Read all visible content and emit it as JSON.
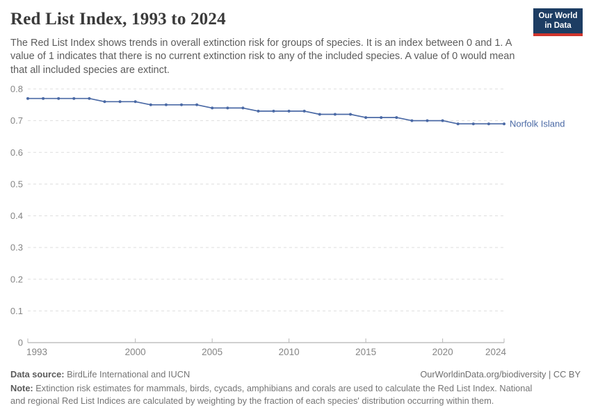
{
  "header": {
    "title": "Red List Index, 1993 to 2024",
    "subtitle": "The Red List Index shows trends in overall extinction risk for groups of species. It is an index between 0 and 1. A value of 1 indicates that there is no current extinction risk to any of the included species. A value of 0 would mean that all included species are extinct.",
    "logo": {
      "line1": "Our World",
      "line2": "in Data"
    }
  },
  "chart_data": {
    "type": "line",
    "title": "Red List Index, 1993 to 2024",
    "xlabel": "",
    "ylabel": "",
    "xlim": [
      1993,
      2024
    ],
    "ylim": [
      0,
      0.8
    ],
    "x_ticks": [
      1993,
      2000,
      2005,
      2010,
      2015,
      2020,
      2024
    ],
    "y_ticks": [
      0,
      0.1,
      0.2,
      0.3,
      0.4,
      0.5,
      0.6,
      0.7,
      0.8
    ],
    "grid": "horizontal-dashed",
    "legend_position": "end-of-line-label",
    "series": [
      {
        "name": "Norfolk Island",
        "color": "#4a69a5",
        "x": [
          1993,
          1994,
          1995,
          1996,
          1997,
          1998,
          1999,
          2000,
          2001,
          2002,
          2003,
          2004,
          2005,
          2006,
          2007,
          2008,
          2009,
          2010,
          2011,
          2012,
          2013,
          2014,
          2015,
          2016,
          2017,
          2018,
          2019,
          2020,
          2021,
          2022,
          2023,
          2024
        ],
        "values": [
          0.77,
          0.77,
          0.77,
          0.77,
          0.77,
          0.76,
          0.76,
          0.76,
          0.75,
          0.75,
          0.75,
          0.75,
          0.74,
          0.74,
          0.74,
          0.73,
          0.73,
          0.73,
          0.73,
          0.72,
          0.72,
          0.72,
          0.71,
          0.71,
          0.71,
          0.7,
          0.7,
          0.7,
          0.69,
          0.69,
          0.69,
          0.69
        ]
      }
    ]
  },
  "footer": {
    "datasource_label": "Data source:",
    "datasource_value": " BirdLife International and IUCN",
    "link": "OurWorldinData.org/biodiversity | CC BY",
    "note_label": "Note:",
    "note_value": " Extinction risk estimates for mammals, birds, cycads, amphibians and corals are used to calculate the Red List Index. National and regional Red List Indices are calculated by weighting by the fraction of each species' distribution occurring within them."
  },
  "colors": {
    "line": "#4a69a5",
    "entity_label": "#4a69a5",
    "gridline": "#dedede",
    "axis_line": "#a1a1a1",
    "tick_mark": "#b8b8b8",
    "axis_text": "#858585",
    "logo_bg": "#1d3d63",
    "logo_red": "#d0342c",
    "title_text": "#3a3a3a",
    "subtitle_text": "#5c5c5c"
  }
}
